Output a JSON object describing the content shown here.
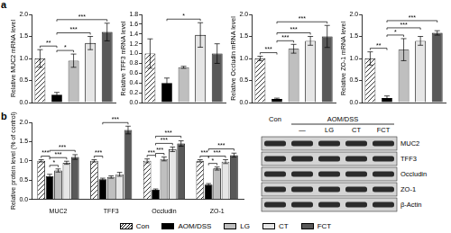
{
  "chart_data": [
    {
      "type": "bar",
      "panel_label": "a",
      "y_label": "Relative MUC2 mRNA level",
      "categories": [
        null,
        null,
        null,
        null,
        null
      ],
      "values": [
        1.0,
        0.18,
        0.95,
        1.35,
        1.6
      ],
      "errors": [
        0.2,
        0.05,
        0.15,
        0.15,
        0.2
      ],
      "colors": [
        "#ffffff",
        "#000000",
        "#bfbfbf",
        "#e6e6e6",
        "#595959"
      ],
      "ylim": [
        0,
        2
      ],
      "yticks": [
        {
          "value": 0,
          "label": "0.0"
        },
        {
          "value": 0.5,
          "label": "0.5"
        },
        {
          "value": 1,
          "label": "1.0"
        },
        {
          "value": 1.5,
          "label": "1.5"
        },
        {
          "value": 2,
          "label": "2.0"
        }
      ],
      "tick_labels": "y",
      "annotations": [
        {
          "from": 0,
          "to": 1,
          "label": "**"
        },
        {
          "from": 1,
          "to": 2,
          "label": "*"
        },
        {
          "from": 1,
          "to": 3,
          "label": "***"
        },
        {
          "from": 1,
          "to": 4,
          "label": "***"
        }
      ]
    },
    {
      "type": "bar",
      "y_label": "Relative TFF3 mRNA level",
      "categories": [
        null,
        null,
        null,
        null,
        null
      ],
      "values": [
        1.0,
        0.4,
        0.72,
        1.38,
        1.0
      ],
      "errors": [
        0.3,
        0.1,
        0.02,
        0.25,
        0.2
      ],
      "colors": [
        "#ffffff",
        "#000000",
        "#bfbfbf",
        "#e6e6e6",
        "#595959"
      ],
      "ylim": [
        0,
        1.8
      ],
      "yticks": [
        {
          "value": 0,
          "label": "0.0"
        },
        {
          "value": 0.2,
          "label": "0.2"
        },
        {
          "value": 0.4,
          "label": "0.4"
        },
        {
          "value": 0.6,
          "label": "0.6"
        },
        {
          "value": 0.8,
          "label": "0.8"
        },
        {
          "value": 1,
          "label": "1.0"
        },
        {
          "value": 1.2,
          "label": "1.2"
        },
        {
          "value": 1.4,
          "label": "1.4"
        },
        {
          "value": 1.6,
          "label": "1.6"
        },
        {
          "value": 1.8,
          "label": "1.8"
        }
      ],
      "tick_labels": "y",
      "annotations": [
        {
          "from": 1,
          "to": 3,
          "label": "*"
        }
      ]
    },
    {
      "type": "bar",
      "y_label": "Relative Occludin mRNA level",
      "categories": [
        null,
        null,
        null,
        null,
        null
      ],
      "values": [
        1.0,
        0.08,
        1.22,
        1.4,
        1.5
      ],
      "errors": [
        0.05,
        0.02,
        0.1,
        0.1,
        0.25
      ],
      "colors": [
        "#ffffff",
        "#000000",
        "#bfbfbf",
        "#e6e6e6",
        "#595959"
      ],
      "ylim": [
        0,
        2
      ],
      "yticks": [
        {
          "value": 0,
          "label": "0.0"
        },
        {
          "value": 0.5,
          "label": "0.5"
        },
        {
          "value": 1,
          "label": "1.0"
        },
        {
          "value": 1.5,
          "label": "1.5"
        },
        {
          "value": 2,
          "label": "2.0"
        }
      ],
      "tick_labels": "y",
      "annotations": [
        {
          "from": 0,
          "to": 1,
          "label": "***"
        },
        {
          "from": 1,
          "to": 2,
          "label": "***"
        },
        {
          "from": 1,
          "to": 3,
          "label": "***"
        },
        {
          "from": 1,
          "to": 4,
          "label": "***"
        }
      ]
    },
    {
      "type": "bar",
      "y_label": "Relative ZO-1 mRNA level",
      "categories": [
        null,
        null,
        null,
        null,
        null
      ],
      "values": [
        1.0,
        0.1,
        1.2,
        1.4,
        1.58
      ],
      "errors": [
        0.15,
        0.05,
        0.25,
        0.1,
        0.05
      ],
      "colors": [
        "#ffffff",
        "#000000",
        "#bfbfbf",
        "#e6e6e6",
        "#595959"
      ],
      "ylim": [
        0,
        2
      ],
      "yticks": [
        {
          "value": 0,
          "label": "0.0"
        },
        {
          "value": 0.5,
          "label": "0.5"
        },
        {
          "value": 1,
          "label": "1.0"
        },
        {
          "value": 1.5,
          "label": "1.5"
        },
        {
          "value": 2,
          "label": "2.0"
        }
      ],
      "tick_labels": "y",
      "annotations": [
        {
          "from": 0,
          "to": 1,
          "label": "**"
        },
        {
          "from": 1,
          "to": 2,
          "label": "*"
        },
        {
          "from": 1,
          "to": 3,
          "label": "***"
        },
        {
          "from": 1,
          "to": 4,
          "label": "***"
        }
      ]
    },
    {
      "type": "bar",
      "panel_label": "b",
      "y_label": "Relative protein level (% of control)",
      "categories": [
        "MUC2",
        "TFF3",
        "Occludin",
        "ZO-1"
      ],
      "series": [
        {
          "name": "Con",
          "color": "#ffffff",
          "values": [
            1.0,
            1.0,
            1.0,
            1.0
          ],
          "errors": [
            0.03,
            0.03,
            0.05,
            0.03
          ]
        },
        {
          "name": "AOM/DSS",
          "color": "#000000",
          "values": [
            0.6,
            0.52,
            0.25,
            0.38
          ],
          "errors": [
            0.05,
            0.03,
            0.02,
            0.03
          ]
        },
        {
          "name": "LG",
          "color": "#bfbfbf",
          "values": [
            0.75,
            0.58,
            1.05,
            0.8
          ],
          "errors": [
            0.04,
            0.03,
            0.05,
            0.04
          ]
        },
        {
          "name": "CT",
          "color": "#e6e6e6",
          "values": [
            0.95,
            0.65,
            1.3,
            0.98
          ],
          "errors": [
            0.04,
            0.05,
            0.06,
            0.05
          ]
        },
        {
          "name": "FCT",
          "color": "#595959",
          "values": [
            1.1,
            1.8,
            1.45,
            1.15
          ],
          "errors": [
            0.06,
            0.1,
            0.07,
            0.05
          ]
        }
      ],
      "ylim": [
        0,
        2
      ],
      "yticks": [
        {
          "value": 0,
          "label": "0.0"
        },
        {
          "value": 0.5,
          "label": "0.5"
        },
        {
          "value": 1,
          "label": "1.0"
        },
        {
          "value": 1.5,
          "label": "1.5"
        },
        {
          "value": 2,
          "label": "2.0"
        }
      ],
      "legend": "bottom",
      "annotations": [
        {
          "category": 0,
          "from": 0,
          "to": 1,
          "label": "***"
        },
        {
          "category": 0,
          "from": 1,
          "to": 2,
          "label": "*"
        },
        {
          "category": 0,
          "from": 1,
          "to": 3,
          "label": "***"
        },
        {
          "category": 0,
          "from": 1,
          "to": 4,
          "label": "***"
        },
        {
          "category": 1,
          "from": 0,
          "to": 1,
          "label": "***"
        },
        {
          "category": 1,
          "from": 1,
          "to": 4,
          "label": "***"
        },
        {
          "category": 2,
          "from": 0,
          "to": 1,
          "label": "***"
        },
        {
          "category": 2,
          "from": 1,
          "to": 2,
          "label": "***"
        },
        {
          "category": 2,
          "from": 1,
          "to": 3,
          "label": "***"
        },
        {
          "category": 2,
          "from": 1,
          "to": 4,
          "label": "***"
        },
        {
          "category": 3,
          "from": 0,
          "to": 1,
          "label": "***"
        },
        {
          "category": 3,
          "from": 1,
          "to": 2,
          "label": "*"
        },
        {
          "category": 3,
          "from": 1,
          "to": 3,
          "label": "***"
        },
        {
          "category": 3,
          "from": 1,
          "to": 4,
          "label": "***"
        }
      ]
    }
  ],
  "western_blot": {
    "lane_groups": [
      {
        "lanes": [
          "Con"
        ]
      },
      {
        "label": "AOM/DSS",
        "lanes": [
          "—",
          "LG",
          "CT",
          "FCT"
        ]
      }
    ],
    "rows": [
      "MUC2",
      "TFF3",
      "Occludin",
      "ZO-1",
      "β-Actin"
    ]
  }
}
